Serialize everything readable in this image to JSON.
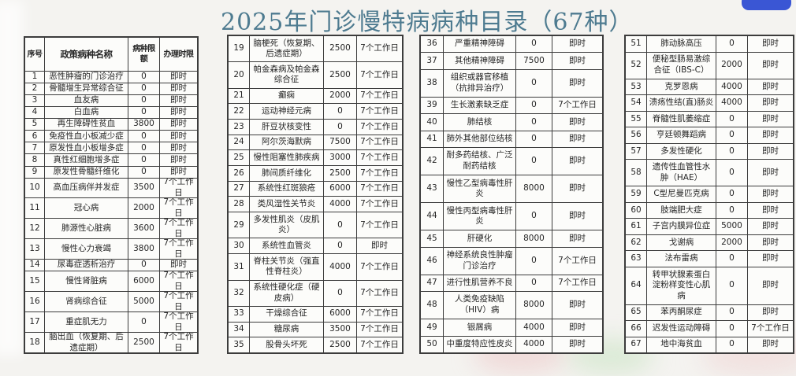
{
  "title": "2025年门诊慢特病病种目录（67种）",
  "title_color": "#4e7b90",
  "corner_button_color": "#3a56d4",
  "table_header": {
    "no": "序号",
    "name": "政策病种名称",
    "limit": "病种限额",
    "time": "办理时限"
  },
  "tables": [
    {
      "rows": [
        {
          "no": "1",
          "disease": "恶性肿瘤的门诊治疗",
          "limit": "0",
          "time": "即时"
        },
        {
          "no": "2",
          "disease": "骨髓增生异常综合征",
          "limit": "0",
          "time": "即时"
        },
        {
          "no": "3",
          "disease": "血友病",
          "limit": "0",
          "time": "即时"
        },
        {
          "no": "4",
          "disease": "白血病",
          "limit": "0",
          "time": "即时"
        },
        {
          "no": "5",
          "disease": "再生障碍性贫血",
          "limit": "3800",
          "time": "即时"
        },
        {
          "no": "6",
          "disease": "免疫性血小板减少症",
          "limit": "0",
          "time": "即时"
        },
        {
          "no": "7",
          "disease": "原发性血小板增多症",
          "limit": "0",
          "time": "即时"
        },
        {
          "no": "8",
          "disease": "真性红细胞增多症",
          "limit": "0",
          "time": "即时"
        },
        {
          "no": "9",
          "disease": "原发性骨髓纤维化",
          "limit": "0",
          "time": "即时"
        },
        {
          "no": "10",
          "disease": "高血压病伴并发症",
          "limit": "3500",
          "time": "7个工作日"
        },
        {
          "no": "11",
          "disease": "冠心病",
          "limit": "2000",
          "time": "7个工作日"
        },
        {
          "no": "12",
          "disease": "肺源性心脏病",
          "limit": "3600",
          "time": "7个工作日"
        },
        {
          "no": "13",
          "disease": "慢性心力衰竭",
          "limit": "3800",
          "time": "7个工作日"
        },
        {
          "no": "14",
          "disease": "尿毒症透析治疗",
          "limit": "0",
          "time": "即时"
        },
        {
          "no": "15",
          "disease": "慢性肾脏病",
          "limit": "6000",
          "time": "7个工作日"
        },
        {
          "no": "16",
          "disease": "肾病综合征",
          "limit": "5000",
          "time": "7个工作日"
        },
        {
          "no": "17",
          "disease": "重症肌无力",
          "limit": "0",
          "time": "7个工作日"
        },
        {
          "no": "18",
          "disease": "脑出血（恢复期、后遗症期）",
          "limit": "2500",
          "time": "7个工作日"
        }
      ]
    },
    {
      "rows": [
        {
          "no": "19",
          "disease": "脑梗死（恢复期、后遗症期）",
          "limit": "2500",
          "time": "7个工作日"
        },
        {
          "no": "20",
          "disease": "帕金森病及帕金森综合征",
          "limit": "2500",
          "time": "7个工作日"
        },
        {
          "no": "21",
          "disease": "癫痫",
          "limit": "2000",
          "time": "7个工作日"
        },
        {
          "no": "22",
          "disease": "运动神经元病",
          "limit": "0",
          "time": "7个工作日"
        },
        {
          "no": "23",
          "disease": "肝豆状核变性",
          "limit": "0",
          "time": "7个工作日"
        },
        {
          "no": "24",
          "disease": "阿尔茨海默病",
          "limit": "7500",
          "time": "7个工作日"
        },
        {
          "no": "25",
          "disease": "慢性阻塞性肺疾病",
          "limit": "3000",
          "time": "7个工作日"
        },
        {
          "no": "26",
          "disease": "肺间质纤维化",
          "limit": "2500",
          "time": "7个工作日"
        },
        {
          "no": "27",
          "disease": "系统性红斑狼疮",
          "limit": "6000",
          "time": "7个工作日"
        },
        {
          "no": "28",
          "disease": "类风湿性关节炎",
          "limit": "4000",
          "time": "7个工作日"
        },
        {
          "no": "29",
          "disease": "多发性肌炎（皮肌炎）",
          "limit": "0",
          "time": "7个工作日"
        },
        {
          "no": "30",
          "disease": "系统性血管炎",
          "limit": "0",
          "time": "即时"
        },
        {
          "no": "31",
          "disease": "脊柱关节炎（强直性脊柱炎）",
          "limit": "4000",
          "time": "7个工作日"
        },
        {
          "no": "32",
          "disease": "系统性硬化症（硬皮病）",
          "limit": "0",
          "time": "7个工作日"
        },
        {
          "no": "33",
          "disease": "干燥综合征",
          "limit": "6000",
          "time": "7个工作日"
        },
        {
          "no": "34",
          "disease": "糖尿病",
          "limit": "3500",
          "time": "7个工作日"
        },
        {
          "no": "35",
          "disease": "股骨头坏死",
          "limit": "2500",
          "time": "7个工作日"
        }
      ]
    },
    {
      "rows": [
        {
          "no": "36",
          "disease": "严重精神障碍",
          "limit": "0",
          "time": "即时"
        },
        {
          "no": "37",
          "disease": "其他精神障碍",
          "limit": "7500",
          "time": "即时"
        },
        {
          "no": "38",
          "disease": "组织或器官移植（抗排异治疗）",
          "limit": "0",
          "time": "即时"
        },
        {
          "no": "39",
          "disease": "生长激素缺乏症",
          "limit": "0",
          "time": "7个工作日"
        },
        {
          "no": "40",
          "disease": "肺结核",
          "limit": "0",
          "time": "即时"
        },
        {
          "no": "41",
          "disease": "肺外其他部位结核",
          "limit": "0",
          "time": "即时"
        },
        {
          "no": "42",
          "disease": "耐多药结核、广泛耐药结核",
          "limit": "0",
          "time": "即时"
        },
        {
          "no": "43",
          "disease": "慢性乙型病毒性肝炎",
          "limit": "8000",
          "time": "即时"
        },
        {
          "no": "44",
          "disease": "慢性丙型病毒性肝炎",
          "limit": "0",
          "time": "即时"
        },
        {
          "no": "45",
          "disease": "肝硬化",
          "limit": "8000",
          "time": "即时"
        },
        {
          "no": "46",
          "disease": "神经系统良性肿瘤门诊治疗",
          "limit": "0",
          "time": "7个工作日"
        },
        {
          "no": "47",
          "disease": "进行性肌营养不良",
          "limit": "0",
          "time": "7个工作日"
        },
        {
          "no": "48",
          "disease": "人类免疫缺陷（HIV）病",
          "limit": "8000",
          "time": "即时"
        },
        {
          "no": "49",
          "disease": "银屑病",
          "limit": "4000",
          "time": "即时"
        },
        {
          "no": "50",
          "disease": "中重度特应性皮炎",
          "limit": "4000",
          "time": "即时"
        }
      ]
    },
    {
      "rows": [
        {
          "no": "51",
          "disease": "肺动脉高压",
          "limit": "0",
          "time": "即时"
        },
        {
          "no": "52",
          "disease": "便秘型肠易激综合征（IBS-C）",
          "limit": "2000",
          "time": "即时"
        },
        {
          "no": "53",
          "disease": "克罗恩病",
          "limit": "4000",
          "time": "即时"
        },
        {
          "no": "54",
          "disease": "溃疡性结(直)肠炎",
          "limit": "4000",
          "time": "即时"
        },
        {
          "no": "55",
          "disease": "脊髓性肌萎缩症",
          "limit": "0",
          "time": "即时"
        },
        {
          "no": "56",
          "disease": "亨廷顿舞蹈病",
          "limit": "0",
          "time": "即时"
        },
        {
          "no": "57",
          "disease": "多发性硬化",
          "limit": "0",
          "time": "即时"
        },
        {
          "no": "58",
          "disease": "遗传性血管性水肿（HAE）",
          "limit": "0",
          "time": "即时"
        },
        {
          "no": "59",
          "disease": "C型尼曼匹克病",
          "limit": "0",
          "time": "即时"
        },
        {
          "no": "60",
          "disease": "肢端肥大症",
          "limit": "0",
          "time": "即时"
        },
        {
          "no": "61",
          "disease": "子宫内膜异位症",
          "limit": "5000",
          "time": "即时"
        },
        {
          "no": "62",
          "disease": "戈谢病",
          "limit": "2000",
          "time": "即时"
        },
        {
          "no": "63",
          "disease": "法布雷病",
          "limit": "0",
          "time": "即时"
        },
        {
          "no": "64",
          "disease": "转甲状腺素蛋白淀粉样变性心肌病",
          "limit": "0",
          "time": "即时"
        },
        {
          "no": "65",
          "disease": "苯丙酮尿症",
          "limit": "0",
          "time": "即时"
        },
        {
          "no": "66",
          "disease": "迟发性运动障碍",
          "limit": "0",
          "time": "7个工作日"
        },
        {
          "no": "67",
          "disease": "地中海贫血",
          "limit": "0",
          "time": "即时"
        }
      ]
    }
  ]
}
